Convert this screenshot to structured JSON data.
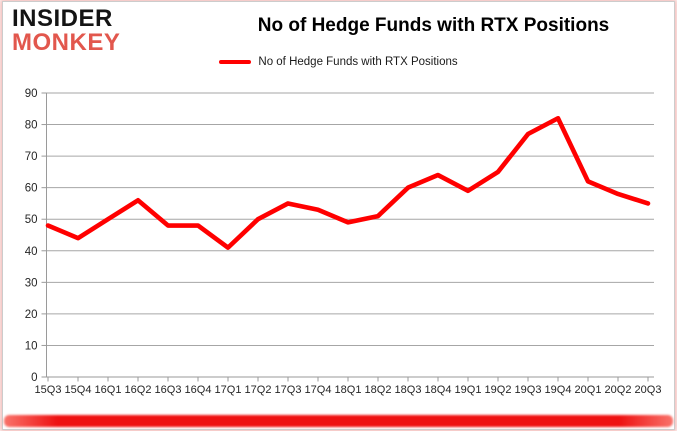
{
  "brand": {
    "line1": "INSIDER",
    "line2": "MONKEY"
  },
  "header": {
    "title": "No of Hedge Funds with RTX Positions"
  },
  "legend": {
    "label": "No of Hedge Funds with RTX Positions",
    "color": "#ff0000"
  },
  "colors": {
    "line": "#ff0000",
    "grid": "#a6a6a6",
    "axis": "#9a9a9a",
    "axis_text": "#262626",
    "logo_black": "#141414",
    "logo_red": "#e2574d",
    "accent_bar": "#ee1111"
  },
  "chart_data": {
    "type": "line",
    "title": "No of Hedge Funds with RTX Positions",
    "categories": [
      "15Q3",
      "15Q4",
      "16Q1",
      "16Q2",
      "16Q3",
      "16Q4",
      "17Q1",
      "17Q2",
      "17Q3",
      "17Q4",
      "18Q1",
      "18Q2",
      "18Q3",
      "18Q4",
      "19Q1",
      "19Q2",
      "19Q3",
      "19Q4",
      "20Q1",
      "20Q2",
      "20Q3"
    ],
    "series": [
      {
        "name": "No of Hedge Funds with RTX Positions",
        "color": "#ff0000",
        "values": [
          48,
          44,
          50,
          56,
          48,
          48,
          41,
          50,
          55,
          53,
          49,
          51,
          60,
          64,
          59,
          65,
          77,
          82,
          62,
          58,
          55
        ]
      }
    ],
    "xlabel": "",
    "ylabel": "",
    "ylim": [
      0,
      90
    ],
    "ytick_step": 10,
    "grid": true,
    "legend_position": "top"
  }
}
